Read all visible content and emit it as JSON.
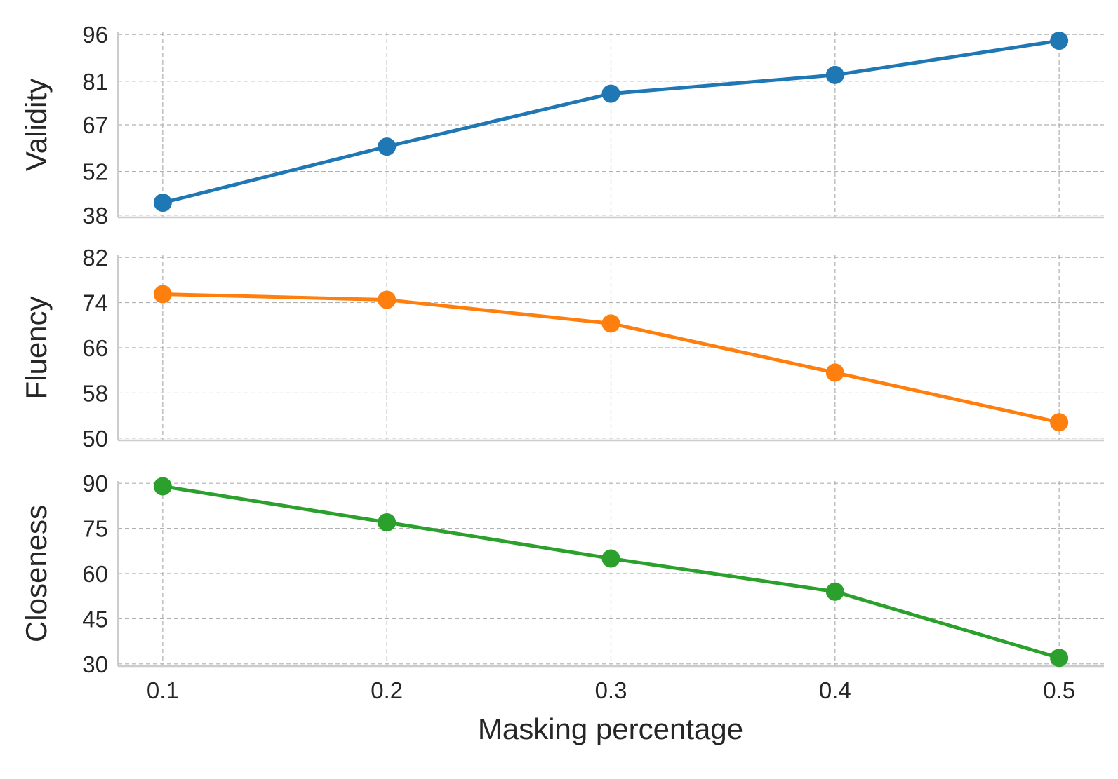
{
  "chart_data": {
    "type": "line",
    "xlabel": "Masking percentage",
    "x": [
      0.1,
      0.2,
      0.3,
      0.4,
      0.5
    ],
    "x_tick_labels": [
      "0.1",
      "0.2",
      "0.3",
      "0.4",
      "0.5"
    ],
    "grid": true,
    "panels": [
      {
        "ylabel": "Validity",
        "color": "#1f77b4",
        "ylim": [
          38,
          96
        ],
        "y_ticks": [
          38,
          52,
          67,
          81,
          96
        ],
        "values": [
          42,
          60,
          77,
          83,
          94
        ]
      },
      {
        "ylabel": "Fluency",
        "color": "#ff7f0e",
        "ylim": [
          50,
          82
        ],
        "y_ticks": [
          50,
          58,
          66,
          74,
          82
        ],
        "values": [
          75.5,
          74.5,
          70.3,
          61.6,
          52.8
        ]
      },
      {
        "ylabel": "Closeness",
        "color": "#2ca02c",
        "ylim": [
          30,
          90
        ],
        "y_ticks": [
          30,
          45,
          60,
          75,
          90
        ],
        "values": [
          89,
          77,
          65,
          54,
          32
        ]
      }
    ]
  }
}
